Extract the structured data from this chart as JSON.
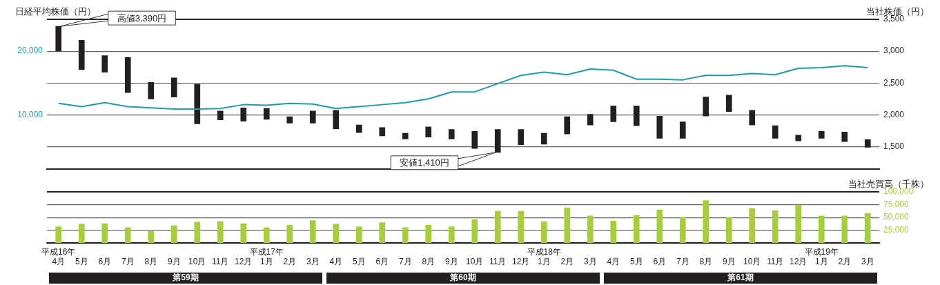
{
  "chart_data": [
    {
      "type": "bar",
      "ylabel": "日経平均株価（円）",
      "y2label": "当社株価（円）",
      "categories": [
        null,
        null,
        null,
        null,
        null,
        null,
        null,
        null,
        null,
        null,
        null,
        null,
        null,
        null,
        null,
        null,
        null,
        null,
        null,
        null,
        null,
        null,
        null,
        null,
        null,
        null,
        null,
        null,
        null,
        null,
        null,
        null,
        null,
        null,
        null,
        null
      ],
      "series": [
        {
          "axis": "y2",
          "color": "#231f20",
          "base": [
            3000,
            2710,
            2670,
            2350,
            2250,
            2280,
            1860,
            1920,
            1900,
            1930,
            1870,
            1870,
            1780,
            1720,
            1670,
            1620,
            1650,
            1620,
            1470,
            1410,
            1530,
            1540,
            1700,
            1840,
            1890,
            1830,
            1630,
            1630,
            1980,
            2050,
            1840,
            1630,
            1590,
            1630,
            1580,
            1490
          ],
          "values": [
            390,
            460,
            260,
            550,
            260,
            300,
            620,
            140,
            210,
            170,
            100,
            190,
            290,
            120,
            130,
            90,
            160,
            150,
            270,
            360,
            240,
            170,
            270,
            170,
            250,
            310,
            350,
            260,
            300,
            260,
            230,
            200,
            90,
            110,
            150,
            120
          ]
        },
        {
          "type": "line",
          "axis": "y",
          "color": "#1a9cb3",
          "values": [
            11800,
            11300,
            11900,
            11300,
            11100,
            10900,
            10900,
            11000,
            11600,
            11500,
            11800,
            11700,
            11000,
            11300,
            11600,
            11900,
            12500,
            13600,
            13600,
            14900,
            16200,
            16700,
            16300,
            17200,
            17000,
            15600,
            15600,
            15500,
            16200,
            16200,
            16500,
            16300,
            17300,
            17400,
            17700,
            17400
          ]
        }
      ],
      "ylim": [
        1500,
        25000
      ],
      "yticks": [
        {
          "value": 5000,
          "label": null
        },
        {
          "value": 10000,
          "label": "10,000"
        },
        {
          "value": 15000,
          "label": null
        },
        {
          "value": 20000,
          "label": "20,000"
        },
        {
          "value": 25000,
          "label": null
        }
      ],
      "y2lim": [
        1150,
        3500
      ],
      "y2ticks": [
        {
          "value": 1500,
          "label": "1,500"
        },
        {
          "value": 2000,
          "label": "2,000"
        },
        {
          "value": 2500,
          "label": "2,500"
        },
        {
          "value": 3000,
          "label": "3,000"
        },
        {
          "value": 3500,
          "label": "3,500"
        }
      ],
      "grid": "y",
      "legend": false,
      "tick_labels": "y",
      "annotations": [
        "高値3,390円",
        "安値1,410円"
      ]
    },
    {
      "type": "bar",
      "ylabel": "当社売買高（千株）",
      "categories": [
        "平成16年\n4月",
        "5月",
        "6月",
        "7月",
        "8月",
        "9月",
        "10月",
        "11月",
        "12月",
        "平成17年\n1月",
        "2月",
        "3月",
        "4月",
        "5月",
        "6月",
        "7月",
        "8月",
        "9月",
        "10月",
        "11月",
        "12月",
        "平成18年\n1月",
        "2月",
        "3月",
        "4月",
        "5月",
        "6月",
        "7月",
        "8月",
        "9月",
        "10月",
        "11月",
        "12月",
        "平成19年\n1月",
        "2月",
        "3月"
      ],
      "values": [
        32000,
        37000,
        38000,
        30000,
        23000,
        34000,
        41000,
        42000,
        38000,
        30000,
        35000,
        44000,
        37000,
        32000,
        40000,
        30000,
        35000,
        32000,
        46000,
        62000,
        62000,
        42000,
        69000,
        53000,
        43000,
        54000,
        65000,
        50000,
        83000,
        50000,
        68000,
        63000,
        74000,
        53000,
        53000,
        58000
      ],
      "color": "#a6ce39",
      "ylim": [
        0,
        100000
      ],
      "yticks": [
        {
          "value": 0,
          "label": null
        },
        {
          "value": 25000,
          "label": "25,000"
        },
        {
          "value": 50000,
          "label": "50,000"
        },
        {
          "value": 75000,
          "label": "75,000"
        },
        {
          "value": 100000,
          "label": "100,000"
        }
      ],
      "grid": "y",
      "legend": false,
      "annotations": [
        "第59期",
        "第60期",
        "第61期"
      ]
    }
  ]
}
